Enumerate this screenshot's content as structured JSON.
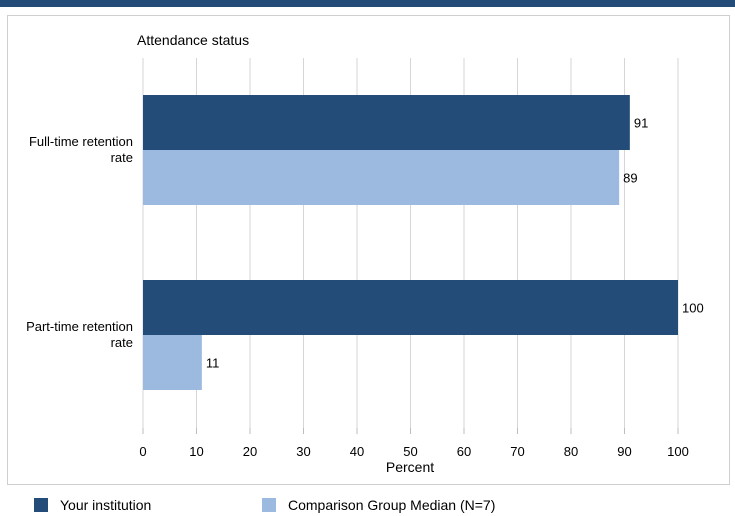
{
  "chart_data": {
    "type": "bar",
    "orientation": "horizontal",
    "title": "Attendance status",
    "xlabel": "Percent",
    "xlim": [
      0,
      100
    ],
    "xticks": [
      0,
      10,
      20,
      30,
      40,
      50,
      60,
      70,
      80,
      90,
      100
    ],
    "categories": [
      "Full-time retention rate",
      "Part-time retention rate"
    ],
    "series": [
      {
        "name": "Your institution",
        "values": [
          91,
          100
        ],
        "color": "#234d78"
      },
      {
        "name": "Comparison Group Median (N=7)",
        "values": [
          89,
          11
        ],
        "color": "#9cb9e0"
      }
    ],
    "grid": true,
    "legend_position": "bottom"
  }
}
